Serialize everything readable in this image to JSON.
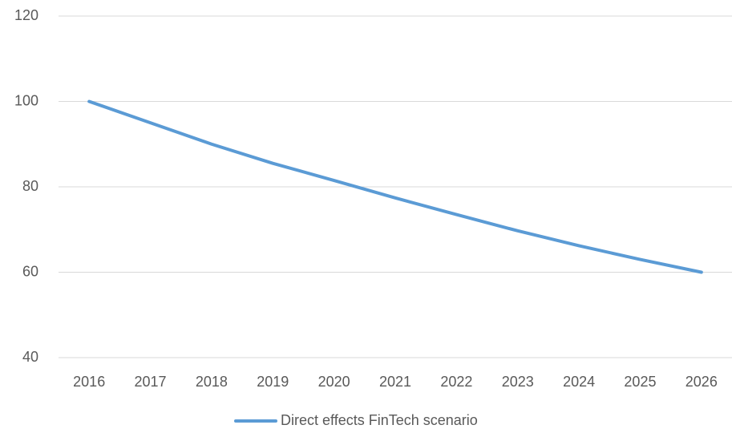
{
  "chart_data": {
    "type": "line",
    "categories": [
      "2016",
      "2017",
      "2018",
      "2019",
      "2020",
      "2021",
      "2022",
      "2023",
      "2024",
      "2025",
      "2026"
    ],
    "series": [
      {
        "name": "Direct effects FinTech scenario",
        "color": "#5b9bd5",
        "values": [
          100,
          95,
          90,
          85.5,
          81.5,
          77.4,
          73.5,
          69.7,
          66.2,
          63,
          60
        ]
      }
    ],
    "ylim": [
      40,
      120
    ],
    "yticks": [
      40,
      60,
      80,
      100,
      120
    ],
    "grid": true,
    "legend": "bottom"
  }
}
